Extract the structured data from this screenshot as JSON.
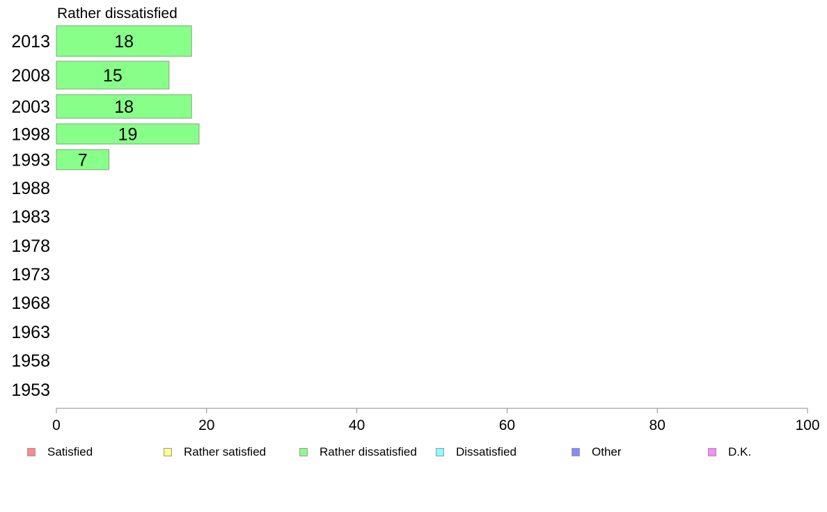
{
  "chart_data": {
    "type": "bar",
    "orientation": "horizontal",
    "title": "Rather dissatisfied",
    "categories": [
      "2013",
      "2008",
      "2003",
      "1998",
      "1993",
      "1988",
      "1983",
      "1978",
      "1973",
      "1968",
      "1963",
      "1958",
      "1953"
    ],
    "series": [
      {
        "name": "Rather dissatisfied",
        "color": "#88ff88",
        "values": [
          18,
          15,
          18,
          19,
          7,
          null,
          null,
          null,
          null,
          null,
          null,
          null,
          null
        ],
        "labels": [
          "18",
          "15",
          "18",
          "19",
          "7",
          "",
          "",
          "",
          "",
          "",
          "",
          "",
          ""
        ]
      }
    ],
    "xlim": [
      0,
      100
    ],
    "x_ticks": [
      0,
      20,
      40,
      60,
      80,
      100
    ],
    "grid": false,
    "legend_position": "bottom",
    "legend": [
      {
        "label": "Satisfied",
        "color": "#ff8888"
      },
      {
        "label": "Rather satisfied",
        "color": "#ffff88"
      },
      {
        "label": "Rather dissatisfied",
        "color": "#88ff88"
      },
      {
        "label": "Dissatisfied",
        "color": "#88ffff"
      },
      {
        "label": "Other",
        "color": "#8888ff"
      },
      {
        "label": "D.K.",
        "color": "#ff88ff"
      }
    ]
  }
}
